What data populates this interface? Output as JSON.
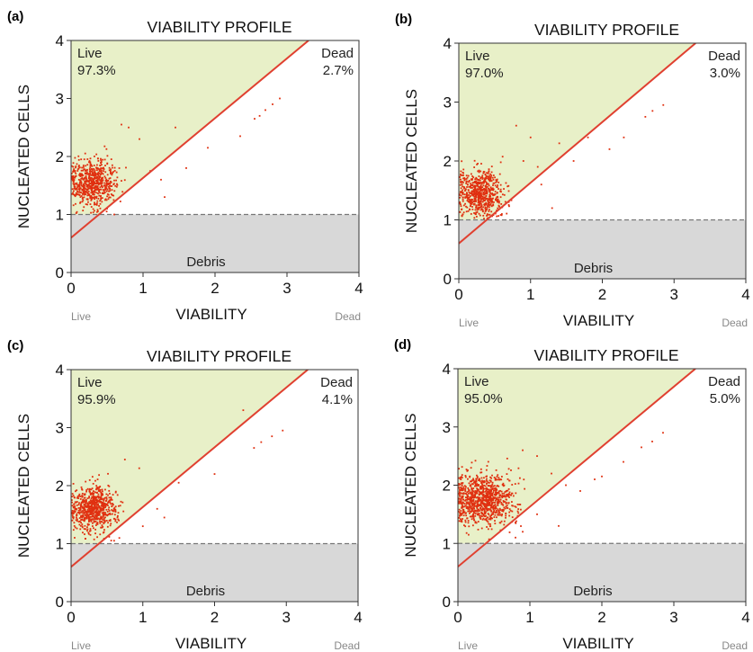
{
  "figure": {
    "panels": [
      {
        "letter": "(a)",
        "title": "VIABILITY PROFILE",
        "ylabel": "NUCLEATED CELLS",
        "xlabel": "VIABILITY",
        "live_label": "Live",
        "live_pct": "97.3%",
        "dead_label": "Dead",
        "dead_pct": "2.7%",
        "debris_label": "Debris",
        "x_live": "Live",
        "x_dead": "Dead"
      },
      {
        "letter": "(b)",
        "title": "VIABILITY PROFILE",
        "ylabel": "NUCLEATED CELLS",
        "xlabel": "VIABILITY",
        "live_label": "Live",
        "live_pct": "97.0%",
        "dead_label": "Dead",
        "dead_pct": "3.0%",
        "debris_label": "Debris",
        "x_live": "Live",
        "x_dead": "Dead"
      },
      {
        "letter": "(c)",
        "title": "VIABILITY PROFILE",
        "ylabel": "NUCLEATED CELLS",
        "xlabel": "VIABILITY",
        "live_label": "Live",
        "live_pct": "95.9%",
        "dead_label": "Dead",
        "dead_pct": "4.1%",
        "debris_label": "Debris",
        "x_live": "Live",
        "x_dead": "Dead"
      },
      {
        "letter": "(d)",
        "title": "VIABILITY PROFILE",
        "ylabel": "NUCLEATED CELLS",
        "xlabel": "VIABILITY",
        "live_label": "Live",
        "live_pct": "95.0%",
        "dead_label": "Dead",
        "dead_pct": "5.0%",
        "debris_label": "Debris",
        "x_live": "Live",
        "x_dead": "Dead"
      }
    ]
  },
  "chart_data": [
    {
      "type": "scatter",
      "title": "VIABILITY PROFILE",
      "xlabel": "VIABILITY",
      "ylabel": "NUCLEATED CELLS",
      "xlim": [
        0,
        4
      ],
      "ylim": [
        0,
        4
      ],
      "x_ticks": [
        "0",
        "1",
        "2",
        "3",
        "4"
      ],
      "y_ticks": [
        "0",
        "1",
        "2",
        "3",
        "4"
      ],
      "gate_line": {
        "x": [
          0,
          3.3
        ],
        "y": [
          0.6,
          4
        ]
      },
      "debris_threshold": 1,
      "cluster": {
        "center": [
          0.3,
          1.55
        ],
        "spread": [
          0.16,
          0.19
        ],
        "count": 650
      },
      "scatter_points": [
        [
          0.7,
          2.55
        ],
        [
          0.8,
          2.5
        ],
        [
          0.95,
          2.3
        ],
        [
          1.1,
          1.75
        ],
        [
          1.25,
          1.6
        ],
        [
          1.45,
          2.5
        ],
        [
          1.9,
          2.15
        ],
        [
          2.35,
          2.35
        ],
        [
          2.55,
          2.65
        ],
        [
          2.62,
          2.7
        ],
        [
          2.7,
          2.8
        ],
        [
          2.8,
          2.9
        ],
        [
          2.9,
          3.0
        ],
        [
          1.3,
          1.3
        ],
        [
          1.6,
          1.8
        ],
        [
          0.6,
          1.0
        ],
        [
          0.5,
          1.1
        ]
      ],
      "colors": {
        "live_region": "#e8f0c8",
        "debris_region": "#d8d8d8",
        "points": "#e03010",
        "gate": "#e04030"
      }
    },
    {
      "type": "scatter",
      "title": "VIABILITY PROFILE",
      "xlabel": "VIABILITY",
      "ylabel": "NUCLEATED CELLS",
      "xlim": [
        0,
        4
      ],
      "ylim": [
        0,
        4
      ],
      "x_ticks": [
        "0",
        "1",
        "2",
        "3",
        "4"
      ],
      "y_ticks": [
        "0",
        "1",
        "2",
        "3",
        "4"
      ],
      "gate_line": {
        "x": [
          0,
          3.3
        ],
        "y": [
          0.6,
          4
        ]
      },
      "debris_threshold": 1,
      "cluster": {
        "center": [
          0.3,
          1.45
        ],
        "spread": [
          0.16,
          0.19
        ],
        "count": 650
      },
      "scatter_points": [
        [
          0.8,
          2.6
        ],
        [
          1.0,
          2.4
        ],
        [
          0.9,
          2.0
        ],
        [
          1.1,
          1.9
        ],
        [
          1.4,
          2.3
        ],
        [
          1.6,
          2.0
        ],
        [
          1.8,
          2.4
        ],
        [
          2.1,
          2.2
        ],
        [
          2.3,
          2.4
        ],
        [
          2.6,
          2.75
        ],
        [
          2.7,
          2.85
        ],
        [
          2.85,
          2.95
        ],
        [
          1.15,
          1.6
        ],
        [
          1.3,
          1.2
        ],
        [
          0.6,
          1.1
        ]
      ],
      "colors": {
        "live_region": "#e8f0c8",
        "debris_region": "#d8d8d8",
        "points": "#e03010",
        "gate": "#e04030"
      }
    },
    {
      "type": "scatter",
      "title": "VIABILITY PROFILE",
      "xlabel": "VIABILITY",
      "ylabel": "NUCLEATED CELLS",
      "xlim": [
        0,
        4
      ],
      "ylim": [
        0,
        4
      ],
      "x_ticks": [
        "0",
        "1",
        "2",
        "3",
        "4"
      ],
      "y_ticks": [
        "0",
        "1",
        "2",
        "3",
        "4"
      ],
      "gate_line": {
        "x": [
          0,
          3.3
        ],
        "y": [
          0.6,
          4
        ]
      },
      "debris_threshold": 1,
      "cluster": {
        "center": [
          0.3,
          1.6
        ],
        "spread": [
          0.16,
          0.19
        ],
        "count": 700
      },
      "scatter_points": [
        [
          0.75,
          2.45
        ],
        [
          0.95,
          2.3
        ],
        [
          1.2,
          1.6
        ],
        [
          1.0,
          1.3
        ],
        [
          1.5,
          2.05
        ],
        [
          2.0,
          2.2
        ],
        [
          2.4,
          3.3
        ],
        [
          2.55,
          2.65
        ],
        [
          2.65,
          2.75
        ],
        [
          2.8,
          2.85
        ],
        [
          2.95,
          2.95
        ],
        [
          1.3,
          1.45
        ],
        [
          0.6,
          1.05
        ]
      ],
      "colors": {
        "live_region": "#e8f0c8",
        "debris_region": "#d8d8d8",
        "points": "#e03010",
        "gate": "#e04030"
      }
    },
    {
      "type": "scatter",
      "title": "VIABILITY PROFILE",
      "xlabel": "VIABILITY",
      "ylabel": "NUCLEATED CELLS",
      "xlim": [
        0,
        4
      ],
      "ylim": [
        0,
        4
      ],
      "x_ticks": [
        "0",
        "1",
        "2",
        "3",
        "4"
      ],
      "y_ticks": [
        "0",
        "1",
        "2",
        "3",
        "4"
      ],
      "gate_line": {
        "x": [
          0,
          3.3
        ],
        "y": [
          0.6,
          4
        ]
      },
      "debris_threshold": 1,
      "cluster": {
        "center": [
          0.35,
          1.75
        ],
        "spread": [
          0.22,
          0.22
        ],
        "count": 900
      },
      "scatter_points": [
        [
          0.9,
          2.6
        ],
        [
          1.1,
          2.5
        ],
        [
          1.3,
          2.2
        ],
        [
          1.5,
          2.0
        ],
        [
          1.7,
          1.9
        ],
        [
          1.9,
          2.1
        ],
        [
          2.0,
          2.15
        ],
        [
          2.3,
          2.4
        ],
        [
          2.55,
          2.65
        ],
        [
          2.7,
          2.75
        ],
        [
          2.85,
          2.9
        ],
        [
          1.1,
          1.5
        ],
        [
          1.4,
          1.3
        ],
        [
          0.8,
          1.1
        ],
        [
          0.9,
          1.2
        ]
      ],
      "colors": {
        "live_region": "#e8f0c8",
        "debris_region": "#d8d8d8",
        "points": "#e03010",
        "gate": "#e04030"
      }
    }
  ]
}
